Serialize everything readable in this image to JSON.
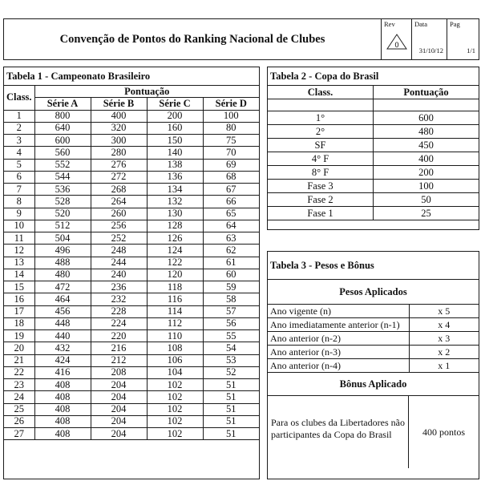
{
  "header": {
    "title": "Convenção de Pontos do Ranking Nacional de Clubes",
    "rev_label": "Rev",
    "rev_value": "0",
    "data_label": "Data",
    "data_value": "31/10/12",
    "pag_label": "Pag",
    "pag_value": "1/1"
  },
  "tabela1": {
    "title": "Tabela 1 - Campeonato Brasileiro",
    "class_header": "Class.",
    "pontuacao_header": "Pontuação",
    "columns": [
      "Série A",
      "Série B",
      "Série C",
      "Série D"
    ],
    "rows": [
      [
        "1",
        "800",
        "400",
        "200",
        "100"
      ],
      [
        "2",
        "640",
        "320",
        "160",
        "80"
      ],
      [
        "3",
        "600",
        "300",
        "150",
        "75"
      ],
      [
        "4",
        "560",
        "280",
        "140",
        "70"
      ],
      [
        "5",
        "552",
        "276",
        "138",
        "69"
      ],
      [
        "6",
        "544",
        "272",
        "136",
        "68"
      ],
      [
        "7",
        "536",
        "268",
        "134",
        "67"
      ],
      [
        "8",
        "528",
        "264",
        "132",
        "66"
      ],
      [
        "9",
        "520",
        "260",
        "130",
        "65"
      ],
      [
        "10",
        "512",
        "256",
        "128",
        "64"
      ],
      [
        "11",
        "504",
        "252",
        "126",
        "63"
      ],
      [
        "12",
        "496",
        "248",
        "124",
        "62"
      ],
      [
        "13",
        "488",
        "244",
        "122",
        "61"
      ],
      [
        "14",
        "480",
        "240",
        "120",
        "60"
      ],
      [
        "15",
        "472",
        "236",
        "118",
        "59"
      ],
      [
        "16",
        "464",
        "232",
        "116",
        "58"
      ],
      [
        "17",
        "456",
        "228",
        "114",
        "57"
      ],
      [
        "18",
        "448",
        "224",
        "112",
        "56"
      ],
      [
        "19",
        "440",
        "220",
        "110",
        "55"
      ],
      [
        "20",
        "432",
        "216",
        "108",
        "54"
      ],
      [
        "21",
        "424",
        "212",
        "106",
        "53"
      ],
      [
        "22",
        "416",
        "208",
        "104",
        "52"
      ],
      [
        "23",
        "408",
        "204",
        "102",
        "51"
      ],
      [
        "24",
        "408",
        "204",
        "102",
        "51"
      ],
      [
        "25",
        "408",
        "204",
        "102",
        "51"
      ],
      [
        "26",
        "408",
        "204",
        "102",
        "51"
      ],
      [
        "27",
        "408",
        "204",
        "102",
        "51"
      ]
    ]
  },
  "tabela2": {
    "title": "Tabela 2 - Copa do Brasil",
    "class_header": "Class.",
    "pontuacao_header": "Pontuação",
    "rows": [
      [
        "1°",
        "600"
      ],
      [
        "2°",
        "480"
      ],
      [
        "SF",
        "450"
      ],
      [
        "4° F",
        "400"
      ],
      [
        "8° F",
        "200"
      ],
      [
        "Fase 3",
        "100"
      ],
      [
        "Fase 2",
        "50"
      ],
      [
        "Fase 1",
        "25"
      ]
    ]
  },
  "tabela3": {
    "title": "Tabela 3 - Pesos e Bônus",
    "pesos_title": "Pesos Aplicados",
    "pesos": [
      [
        "Ano vigente (n)",
        "x 5"
      ],
      [
        "Ano imediatamente anterior  (n-1)",
        "x 4"
      ],
      [
        "Ano anterior  (n-2)",
        "x 3"
      ],
      [
        "Ano anterior  (n-3)",
        "x 2"
      ],
      [
        "Ano anterior  (n-4)",
        "x 1"
      ]
    ],
    "bonus_title": "Bônus Aplicado",
    "bonus_desc": "Para os clubes da Libertadores não participantes da Copa do Brasil",
    "bonus_value": "400 pontos"
  }
}
